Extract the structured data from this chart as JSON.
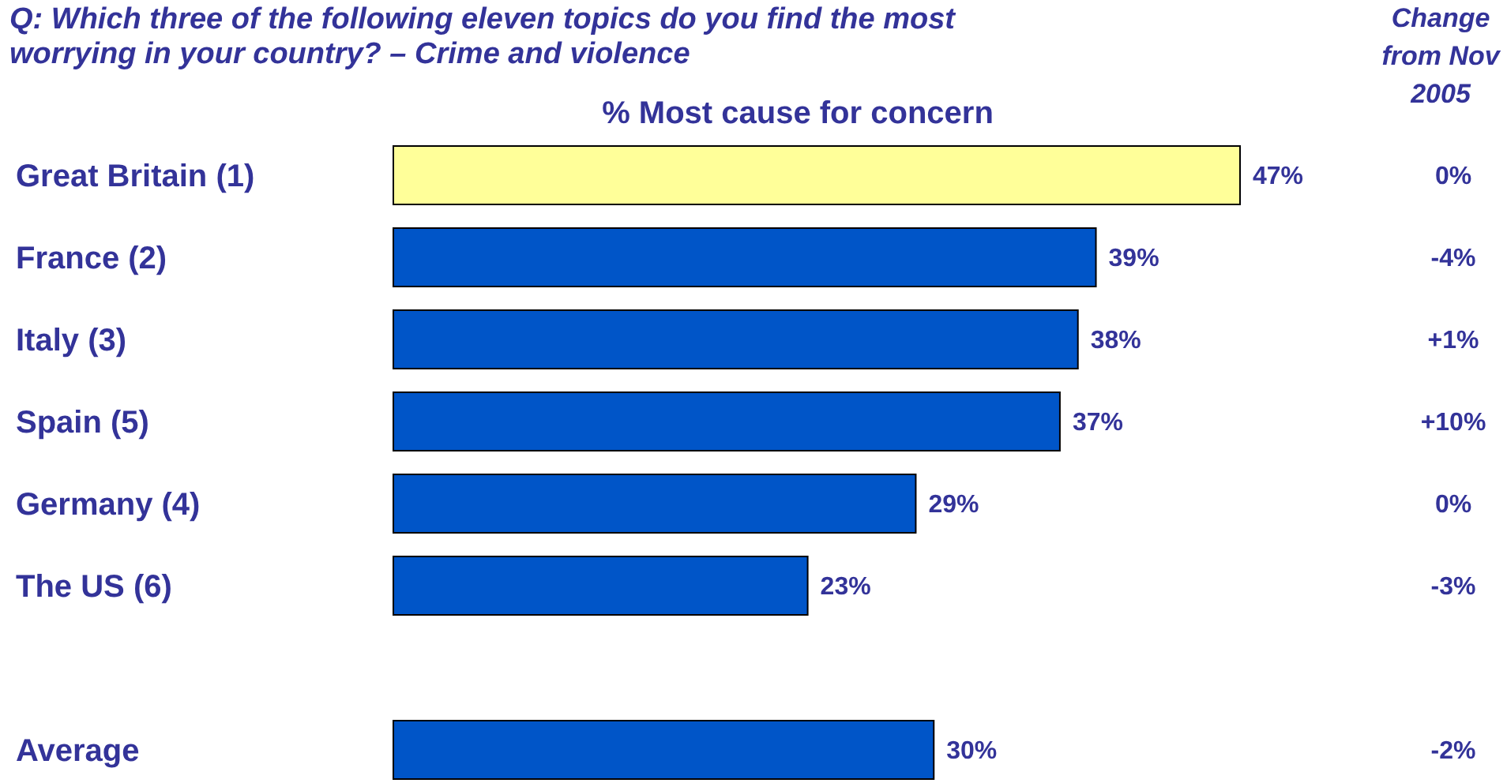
{
  "chart_data": {
    "type": "bar",
    "orientation": "horizontal",
    "title": "Q: Which three of the following eleven topics do you find the most worrying in your country? – Crime and violence",
    "subtitle": "% Most cause for concern",
    "categories": [
      "Great Britain (1)",
      "France (2)",
      "Italy (3)",
      "Spain (5)",
      "Germany (4)",
      "The US (6)",
      null,
      "Average"
    ],
    "values": [
      47,
      39,
      38,
      37,
      29,
      23,
      null,
      30
    ],
    "colors": [
      "#ffff99",
      "#0055c8",
      "#0055c8",
      "#0055c8",
      "#0055c8",
      "#0055c8",
      null,
      "#0055c8"
    ],
    "value_labels": [
      "47%",
      "39%",
      "38%",
      "37%",
      "29%",
      "23%",
      null,
      "30%"
    ],
    "annotations": [
      "Change from Nov 2005",
      "0%",
      "-4%",
      "+1%",
      "+10%",
      "0%",
      "-3%",
      "-2%"
    ]
  }
}
